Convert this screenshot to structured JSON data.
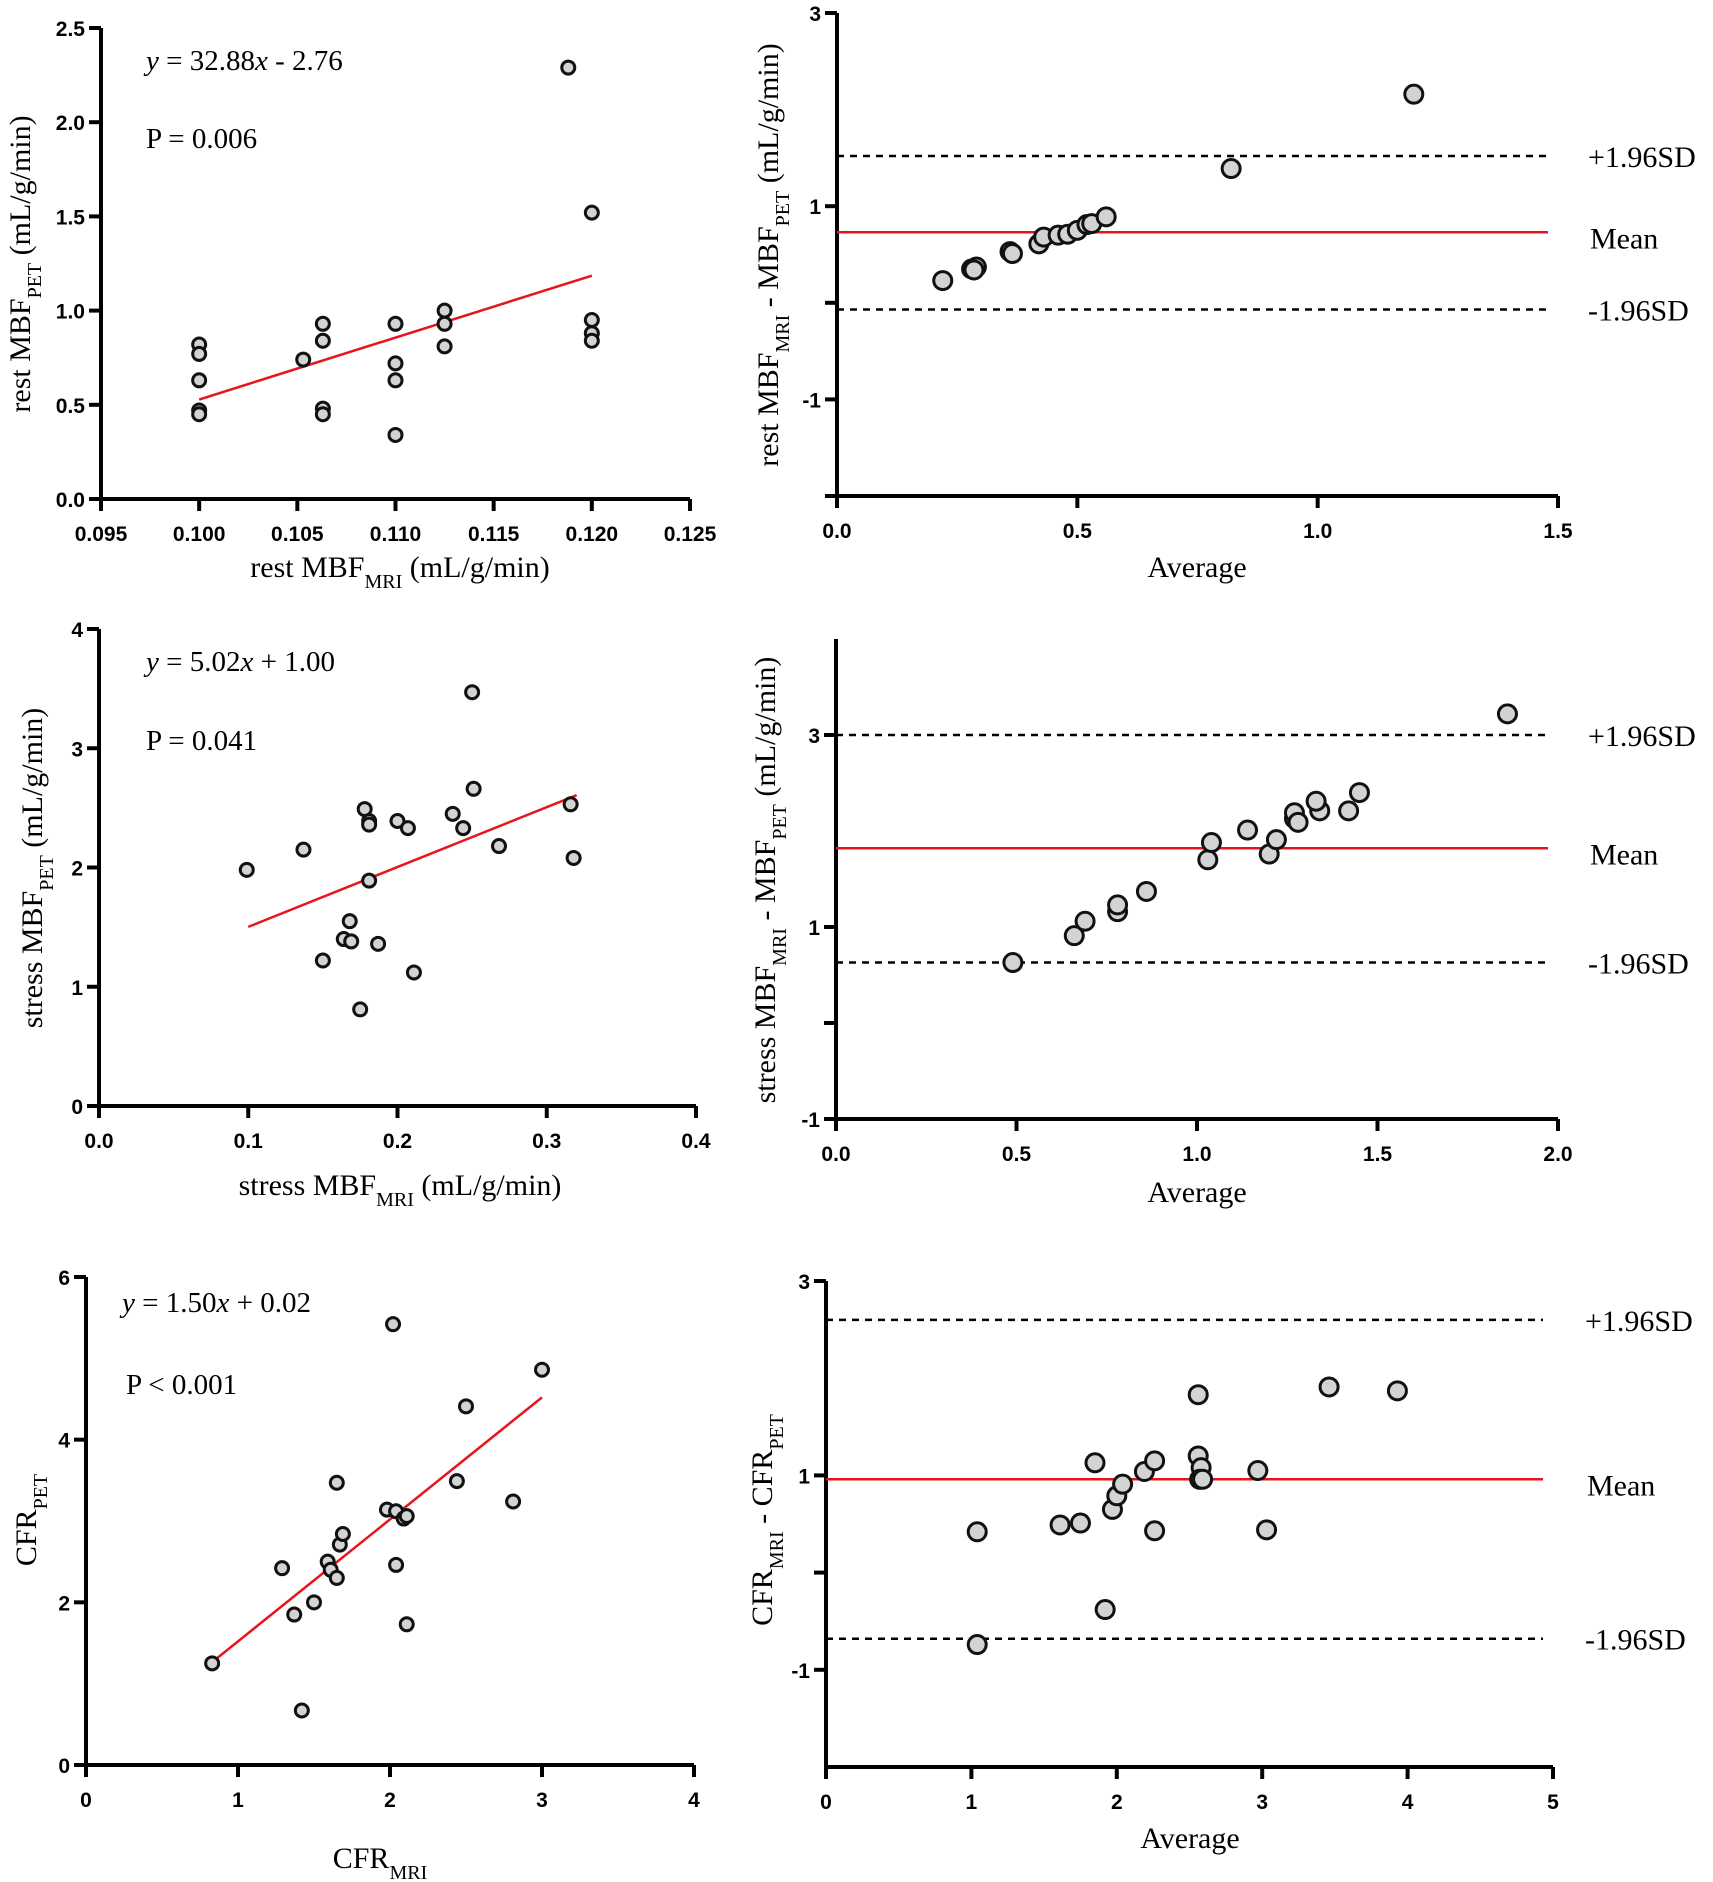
{
  "colors": {
    "regression_line": "#e8141b",
    "mean_line": "#e8141b",
    "point_fill": "#d3d3d3",
    "point_stroke": "#111111",
    "limit_line": "#000000"
  },
  "chart_data": [
    {
      "type": "scatter",
      "xlabel": [
        {
          "t": "rest MBF"
        },
        {
          "t": "MRI",
          "sub": true
        },
        {
          "t": " (mL/g/min)"
        }
      ],
      "ylabel": [
        {
          "t": "rest MBF"
        },
        {
          "t": "PET",
          "sub": true
        },
        {
          "t": " (mL/g/min)"
        }
      ],
      "xlim": [
        0.095,
        0.125
      ],
      "ylim": [
        0,
        2.5
      ],
      "xticks": [
        {
          "v": 0.095,
          "l": "0.095"
        },
        {
          "v": 0.1,
          "l": "0.100"
        },
        {
          "v": 0.105,
          "l": "0.105"
        },
        {
          "v": 0.11,
          "l": "0.110"
        },
        {
          "v": 0.115,
          "l": "0.115"
        },
        {
          "v": 0.12,
          "l": "0.120"
        },
        {
          "v": 0.125,
          "l": "0.125"
        }
      ],
      "yticks": [
        {
          "v": 0,
          "l": "0.0"
        },
        {
          "v": 0.5,
          "l": "0.5"
        },
        {
          "v": 1,
          "l": "1.0"
        },
        {
          "v": 1.5,
          "l": "1.5"
        },
        {
          "v": 2,
          "l": "2.0"
        },
        {
          "v": 2.5,
          "l": "2.5"
        }
      ],
      "equation": [
        {
          "t": "y",
          "i": true
        },
        {
          "t": " = 32.88"
        },
        {
          "t": "x",
          "i": true
        },
        {
          "t": " - 2.76"
        }
      ],
      "p_value": "P = 0.006",
      "fit": {
        "slope": 32.88,
        "intercept": -2.76,
        "x_range": [
          0.1,
          0.12
        ]
      },
      "points": [
        [
          0.1,
          0.82
        ],
        [
          0.1,
          0.77
        ],
        [
          0.1,
          0.63
        ],
        [
          0.1,
          0.47
        ],
        [
          0.1,
          0.45
        ],
        [
          0.1053,
          0.74
        ],
        [
          0.1063,
          0.93
        ],
        [
          0.1063,
          0.84
        ],
        [
          0.1063,
          0.48
        ],
        [
          0.1063,
          0.45
        ],
        [
          0.11,
          0.93
        ],
        [
          0.11,
          0.72
        ],
        [
          0.11,
          0.63
        ],
        [
          0.11,
          0.34
        ],
        [
          0.1125,
          1.0
        ],
        [
          0.1125,
          0.93
        ],
        [
          0.1125,
          0.81
        ],
        [
          0.1188,
          2.29
        ],
        [
          0.12,
          1.52
        ],
        [
          0.12,
          0.95
        ],
        [
          0.12,
          0.88
        ],
        [
          0.12,
          0.84
        ]
      ]
    },
    {
      "type": "scatter",
      "subtype": "bland-altman",
      "xlabel": [
        {
          "t": "Average"
        }
      ],
      "ylabel": [
        {
          "t": "rest MBF"
        },
        {
          "t": "MRI",
          "sub": true
        },
        {
          "t": " - MBF"
        },
        {
          "t": "PET",
          "sub": true
        },
        {
          "t": " (mL/g/min)"
        }
      ],
      "xlim": [
        0,
        1.5
      ],
      "ylim": [
        -2,
        3
      ],
      "xticks": [
        {
          "v": 0,
          "l": "0.0"
        },
        {
          "v": 0.5,
          "l": "0.5"
        },
        {
          "v": 1,
          "l": "1.0"
        },
        {
          "v": 1.5,
          "l": "1.5"
        }
      ],
      "yticks": [
        {
          "v": 3,
          "l": "3"
        },
        {
          "v": 1,
          "l": "1"
        },
        {
          "v": 0,
          "l": ""
        },
        {
          "v": -1,
          "l": "-1"
        },
        {
          "v": -2,
          "l": ""
        }
      ],
      "mean": 0.73,
      "upper_limit": 1.52,
      "lower_limit": -0.07,
      "mean_label": "Mean",
      "upper_label": "+1.96SD",
      "lower_label": "-1.96SD",
      "points": [
        [
          0.22,
          0.23
        ],
        [
          0.28,
          0.35
        ],
        [
          0.29,
          0.37
        ],
        [
          0.285,
          0.34
        ],
        [
          0.36,
          0.53
        ],
        [
          0.365,
          0.51
        ],
        [
          0.42,
          0.61
        ],
        [
          0.43,
          0.68
        ],
        [
          0.46,
          0.7
        ],
        [
          0.48,
          0.71
        ],
        [
          0.5,
          0.75
        ],
        [
          0.52,
          0.81
        ],
        [
          0.53,
          0.82
        ],
        [
          0.56,
          0.89
        ],
        [
          0.82,
          1.39
        ],
        [
          1.2,
          2.16
        ]
      ]
    },
    {
      "type": "scatter",
      "xlabel": [
        {
          "t": "stress MBF"
        },
        {
          "t": "MRI",
          "sub": true
        },
        {
          "t": " (mL/g/min)"
        }
      ],
      "ylabel": [
        {
          "t": "stress MBF"
        },
        {
          "t": "PET",
          "sub": true
        },
        {
          "t": " (mL/g/min)"
        }
      ],
      "xlim": [
        0,
        0.4
      ],
      "ylim": [
        0,
        4
      ],
      "xticks": [
        {
          "v": 0,
          "l": "0.0"
        },
        {
          "v": 0.1,
          "l": "0.1"
        },
        {
          "v": 0.2,
          "l": "0.2"
        },
        {
          "v": 0.3,
          "l": "0.3"
        },
        {
          "v": 0.4,
          "l": "0.4"
        }
      ],
      "yticks": [
        {
          "v": 0,
          "l": "0"
        },
        {
          "v": 1,
          "l": "1"
        },
        {
          "v": 2,
          "l": "2"
        },
        {
          "v": 3,
          "l": "3"
        },
        {
          "v": 4,
          "l": "4"
        }
      ],
      "equation": [
        {
          "t": "y",
          "i": true
        },
        {
          "t": " = 5.02"
        },
        {
          "t": "x",
          "i": true
        },
        {
          "t": " + 1.00"
        }
      ],
      "p_value": "P = 0.041",
      "fit": {
        "slope": 5.02,
        "intercept": 1.0,
        "x_range": [
          0.1,
          0.32
        ]
      },
      "points": [
        [
          0.099,
          1.98
        ],
        [
          0.137,
          2.15
        ],
        [
          0.15,
          1.22
        ],
        [
          0.164,
          1.4
        ],
        [
          0.169,
          1.38
        ],
        [
          0.168,
          1.55
        ],
        [
          0.175,
          0.81
        ],
        [
          0.178,
          2.49
        ],
        [
          0.181,
          2.39
        ],
        [
          0.181,
          2.36
        ],
        [
          0.181,
          1.89
        ],
        [
          0.187,
          1.36
        ],
        [
          0.2,
          2.39
        ],
        [
          0.207,
          2.33
        ],
        [
          0.211,
          1.12
        ],
        [
          0.237,
          2.45
        ],
        [
          0.244,
          2.33
        ],
        [
          0.25,
          3.47
        ],
        [
          0.251,
          2.66
        ],
        [
          0.268,
          2.18
        ],
        [
          0.316,
          2.53
        ],
        [
          0.318,
          2.08
        ]
      ]
    },
    {
      "type": "scatter",
      "subtype": "bland-altman",
      "xlabel": [
        {
          "t": "Average"
        }
      ],
      "ylabel": [
        {
          "t": "stress MBF"
        },
        {
          "t": "MRI",
          "sub": true
        },
        {
          "t": " - MBF"
        },
        {
          "t": "PET",
          "sub": true
        },
        {
          "t": " (mL/g/min)"
        }
      ],
      "xlim": [
        0,
        2
      ],
      "ylim": [
        -1,
        4
      ],
      "xticks": [
        {
          "v": 0,
          "l": "0.0"
        },
        {
          "v": 0.5,
          "l": "0.5"
        },
        {
          "v": 1,
          "l": "1.0"
        },
        {
          "v": 1.5,
          "l": "1.5"
        },
        {
          "v": 2,
          "l": "2.0"
        }
      ],
      "yticks": [
        {
          "v": 3,
          "l": "3"
        },
        {
          "v": 1,
          "l": "1"
        },
        {
          "v": 0,
          "l": ""
        },
        {
          "v": -1,
          "l": "-1"
        }
      ],
      "mean": 1.82,
      "upper_limit": 3.0,
      "lower_limit": 0.63,
      "mean_label": "Mean",
      "upper_label": "+1.96SD",
      "lower_label": "-1.96SD",
      "points": [
        [
          0.49,
          0.63
        ],
        [
          0.66,
          0.91
        ],
        [
          0.69,
          1.06
        ],
        [
          0.78,
          1.16
        ],
        [
          0.78,
          1.23
        ],
        [
          0.86,
          1.37
        ],
        [
          1.03,
          1.7
        ],
        [
          1.04,
          1.88
        ],
        [
          1.14,
          2.01
        ],
        [
          1.2,
          1.76
        ],
        [
          1.22,
          1.91
        ],
        [
          1.27,
          2.13
        ],
        [
          1.27,
          2.19
        ],
        [
          1.28,
          2.09
        ],
        [
          1.34,
          2.21
        ],
        [
          1.33,
          2.31
        ],
        [
          1.42,
          2.21
        ],
        [
          1.45,
          2.4
        ],
        [
          1.86,
          3.22
        ]
      ]
    },
    {
      "type": "scatter",
      "xlabel": [
        {
          "t": "CFR"
        },
        {
          "t": "MRI",
          "sub": true
        }
      ],
      "ylabel": [
        {
          "t": "CFR"
        },
        {
          "t": "PET",
          "sub": true
        }
      ],
      "xlim": [
        0,
        4
      ],
      "ylim": [
        0,
        6
      ],
      "xticks": [
        {
          "v": 0,
          "l": "0"
        },
        {
          "v": 1,
          "l": "1"
        },
        {
          "v": 2,
          "l": "2"
        },
        {
          "v": 3,
          "l": "3"
        },
        {
          "v": 4,
          "l": "4"
        }
      ],
      "yticks": [
        {
          "v": 0,
          "l": "0"
        },
        {
          "v": 2,
          "l": "2"
        },
        {
          "v": 4,
          "l": "4"
        },
        {
          "v": 6,
          "l": "6"
        }
      ],
      "equation": [
        {
          "t": "y",
          "i": true
        },
        {
          "t": " = 1.50"
        },
        {
          "t": "x",
          "i": true
        },
        {
          "t": " + 0.02"
        }
      ],
      "p_value": "P < 0.001",
      "fit": {
        "slope": 1.5,
        "intercept": 0.02,
        "x_range": [
          0.83,
          3.0
        ]
      },
      "points": [
        [
          0.83,
          1.25
        ],
        [
          1.29,
          2.42
        ],
        [
          1.37,
          1.85
        ],
        [
          1.42,
          0.67
        ],
        [
          1.5,
          2.0
        ],
        [
          1.59,
          2.5
        ],
        [
          1.61,
          2.4
        ],
        [
          1.65,
          2.3
        ],
        [
          1.65,
          3.47
        ],
        [
          1.67,
          2.71
        ],
        [
          1.69,
          2.84
        ],
        [
          1.98,
          3.14
        ],
        [
          2.04,
          3.12
        ],
        [
          2.09,
          3.03
        ],
        [
          2.11,
          3.06
        ],
        [
          2.04,
          2.46
        ],
        [
          2.02,
          5.42
        ],
        [
          2.11,
          1.73
        ],
        [
          2.44,
          3.49
        ],
        [
          2.5,
          4.41
        ],
        [
          2.81,
          3.24
        ],
        [
          3.0,
          4.86
        ]
      ]
    },
    {
      "type": "scatter",
      "subtype": "bland-altman",
      "xlabel": [
        {
          "t": "Average"
        }
      ],
      "ylabel": [
        {
          "t": "CFR"
        },
        {
          "t": "MRI",
          "sub": true
        },
        {
          "t": " - CFR"
        },
        {
          "t": "PET",
          "sub": true
        }
      ],
      "xlim": [
        0,
        5
      ],
      "ylim": [
        -2,
        3
      ],
      "xticks": [
        {
          "v": 0,
          "l": "0"
        },
        {
          "v": 1,
          "l": "1"
        },
        {
          "v": 2,
          "l": "2"
        },
        {
          "v": 3,
          "l": "3"
        },
        {
          "v": 4,
          "l": "4"
        },
        {
          "v": 5,
          "l": "5"
        }
      ],
      "yticks": [
        {
          "v": 3,
          "l": "3"
        },
        {
          "v": 1,
          "l": "1"
        },
        {
          "v": 0,
          "l": ""
        },
        {
          "v": -1,
          "l": "-1"
        }
      ],
      "mean": 0.96,
      "upper_limit": 2.6,
      "lower_limit": -0.68,
      "mean_label": "Mean",
      "upper_label": "+1.96SD",
      "lower_label": "-1.96SD",
      "points": [
        [
          1.04,
          0.42
        ],
        [
          1.04,
          -0.74
        ],
        [
          1.61,
          0.49
        ],
        [
          1.75,
          0.51
        ],
        [
          1.85,
          1.13
        ],
        [
          1.92,
          -0.38
        ],
        [
          1.97,
          0.65
        ],
        [
          2.0,
          0.79
        ],
        [
          2.04,
          0.91
        ],
        [
          2.19,
          1.04
        ],
        [
          2.26,
          1.15
        ],
        [
          2.26,
          0.43
        ],
        [
          2.56,
          1.83
        ],
        [
          2.56,
          1.2
        ],
        [
          2.58,
          1.08
        ],
        [
          2.57,
          0.96
        ],
        [
          2.59,
          0.96
        ],
        [
          2.97,
          1.05
        ],
        [
          3.03,
          0.44
        ],
        [
          3.46,
          1.91
        ],
        [
          3.93,
          1.87
        ]
      ]
    }
  ]
}
